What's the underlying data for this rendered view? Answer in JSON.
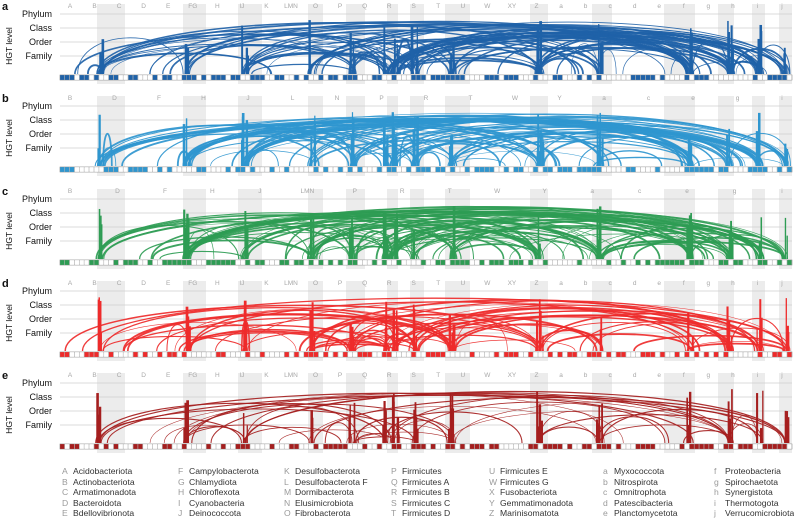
{
  "panels": [
    {
      "letter": "a",
      "color": "#1f62a8",
      "segs": [
        "A",
        "B",
        "C",
        "D",
        "E",
        "FG",
        "H",
        "IJ",
        "K",
        "LMN",
        "O",
        "P",
        "Q",
        "R",
        "S",
        "T",
        "U",
        "W",
        "XY",
        "Z",
        "a",
        "b",
        "c",
        "d",
        "e",
        "f",
        "g",
        "h",
        "i",
        "j"
      ]
    },
    {
      "letter": "b",
      "color": "#2f96cf",
      "segs": [
        "B",
        "D",
        "F",
        "H",
        "J",
        "L",
        "N",
        "P",
        "R",
        "T",
        "W",
        "Y",
        "a",
        "c",
        "e",
        "g",
        "i"
      ]
    },
    {
      "letter": "c",
      "color": "#2e9c54",
      "segs": [
        "B",
        "D",
        "F",
        "H",
        "J",
        "LMN",
        "P",
        "R",
        "T",
        "W",
        "Y",
        "a",
        "c",
        "e",
        "g",
        "i"
      ]
    },
    {
      "letter": "d",
      "color": "#ee2b2b",
      "segs": [
        "A",
        "B",
        "C",
        "D",
        "E",
        "FG",
        "H",
        "IJ",
        "K",
        "LMN",
        "O",
        "P",
        "Q",
        "R",
        "S",
        "T",
        "U",
        "W",
        "XY",
        "Z",
        "a",
        "b",
        "c",
        "d",
        "e",
        "f",
        "g",
        "h",
        "i",
        "j"
      ]
    },
    {
      "letter": "e",
      "color": "#a51e1e",
      "segs": [
        "A",
        "B",
        "C",
        "D",
        "E",
        "FG",
        "H",
        "IJ",
        "K",
        "LMN",
        "O",
        "P",
        "Q",
        "R",
        "S",
        "T",
        "U",
        "W",
        "XY",
        "Z",
        "a",
        "b",
        "c",
        "d",
        "e",
        "f",
        "g",
        "h",
        "i",
        "j"
      ]
    }
  ],
  "levels": [
    "Phylum",
    "Class",
    "Order",
    "Family"
  ],
  "ylabel": "HGT level",
  "legend": [
    [
      [
        "A",
        "Acidobacteriota"
      ],
      [
        "B",
        "Actinobacteriota"
      ],
      [
        "C",
        "Armatimonadota"
      ],
      [
        "D",
        "Bacteroidota"
      ],
      [
        "E",
        "Bdellovibrionota"
      ]
    ],
    [
      [
        "F",
        "Campylobacterota"
      ],
      [
        "G",
        "Chlamydiota"
      ],
      [
        "H",
        "Chloroflexota"
      ],
      [
        "I",
        "Cyanobacteria"
      ],
      [
        "J",
        "Deinococcota"
      ]
    ],
    [
      [
        "K",
        "Desulfobacterota"
      ],
      [
        "L",
        "Desulfobacterota F"
      ],
      [
        "M",
        "Dormibacterota"
      ],
      [
        "N",
        "Elusimicrobiota"
      ],
      [
        "O",
        "Fibrobacterota"
      ]
    ],
    [
      [
        "P",
        "Firmicutes"
      ],
      [
        "Q",
        "Firmicutes A"
      ],
      [
        "R",
        "Firmicutes B"
      ],
      [
        "S",
        "Firmicutes C"
      ],
      [
        "T",
        "Firmicutes D"
      ]
    ],
    [
      [
        "U",
        "Firmicutes E"
      ],
      [
        "W",
        "Firmicutes G"
      ],
      [
        "X",
        "Fusobacteriota"
      ],
      [
        "Y",
        "Gemmatimonadota"
      ],
      [
        "Z",
        "Marinisomatota"
      ]
    ],
    [
      [
        "a",
        "Myxococcota"
      ],
      [
        "b",
        "Nitrospirota"
      ],
      [
        "c",
        "Omnitrophota"
      ],
      [
        "d",
        "Patescibacteria"
      ],
      [
        "e",
        "Planctomycetota"
      ]
    ],
    [
      [
        "f",
        "Proteobacteria"
      ],
      [
        "g",
        "Spirochaetota"
      ],
      [
        "h",
        "Synergistota"
      ],
      [
        "i",
        "Thermotogota"
      ],
      [
        "j",
        "Verrucomicrobiota"
      ]
    ]
  ]
}
